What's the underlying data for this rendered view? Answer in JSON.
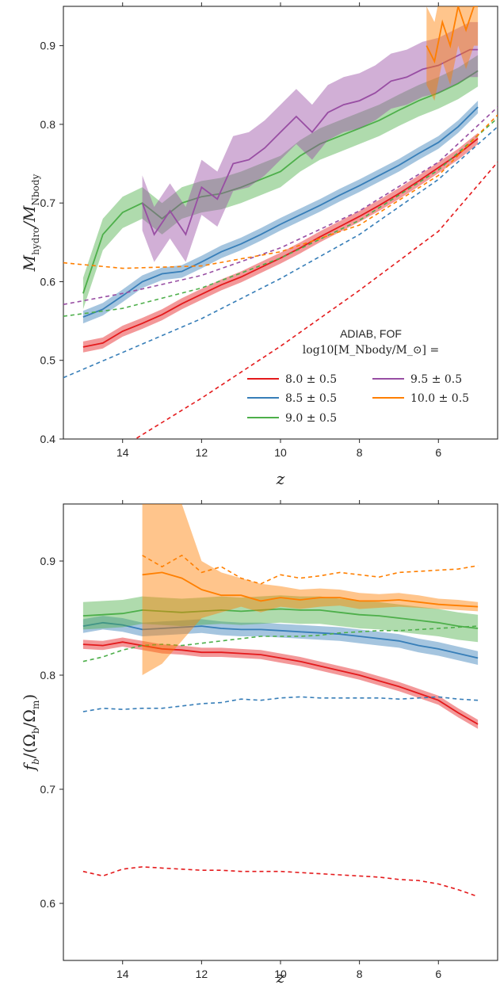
{
  "chart_data": [
    {
      "type": "line",
      "xlabel": "z",
      "ylabel": "M_hydro/M_Nbody",
      "xlim": [
        15.5,
        4.5
      ],
      "ylim": [
        0.4,
        0.95
      ],
      "xticks": [
        14,
        12,
        10,
        8,
        6
      ],
      "yticks": [
        0.4,
        0.5,
        0.6,
        0.7,
        0.8,
        0.9
      ],
      "xtick_labels": [
        "14",
        "12",
        "10",
        "8",
        "6"
      ],
      "ytick_labels": [
        "0.4",
        "0.5",
        "0.6",
        "0.7",
        "0.8",
        "0.9"
      ],
      "legend": {
        "title_line1": "ADIAB, FOF",
        "title_line2": "log10[M_Nbody/M_⊙] =",
        "placement": "lower-right",
        "entries": [
          "8.0 ± 0.5",
          "8.5 ± 0.5",
          "9.0 ± 0.5",
          "9.5 ± 0.5",
          "10.0 ± 0.5"
        ]
      },
      "series": [
        {
          "name": "8.0 ± 0.5",
          "color": "#e41a1c",
          "x": [
            15.0,
            14.5,
            14.0,
            13.5,
            13.0,
            12.5,
            12.0,
            11.5,
            11.0,
            10.5,
            10.0,
            9.5,
            9.0,
            8.5,
            8.0,
            7.5,
            7.0,
            6.5,
            6.0,
            5.5,
            5.0
          ],
          "y": [
            0.517,
            0.522,
            0.537,
            0.547,
            0.558,
            0.572,
            0.584,
            0.596,
            0.606,
            0.618,
            0.63,
            0.643,
            0.657,
            0.67,
            0.683,
            0.697,
            0.712,
            0.728,
            0.745,
            0.762,
            0.782
          ],
          "band": 0.007,
          "dashed_x": [
            15.5,
            14.0,
            12.0,
            10.0,
            8.0,
            6.0,
            4.5
          ],
          "dashed_y": [
            0.345,
            0.39,
            0.452,
            0.518,
            0.589,
            0.664,
            0.752
          ]
        },
        {
          "name": "8.5 ± 0.5",
          "color": "#377eb8",
          "x": [
            15.0,
            14.5,
            14.0,
            13.5,
            13.0,
            12.5,
            12.0,
            11.5,
            11.0,
            10.5,
            10.0,
            9.5,
            9.0,
            8.5,
            8.0,
            7.5,
            7.0,
            6.5,
            6.0,
            5.5,
            5.0
          ],
          "y": [
            0.555,
            0.565,
            0.582,
            0.6,
            0.61,
            0.613,
            0.625,
            0.638,
            0.648,
            0.66,
            0.673,
            0.685,
            0.697,
            0.71,
            0.722,
            0.735,
            0.748,
            0.763,
            0.777,
            0.797,
            0.822
          ],
          "band": 0.008,
          "dashed_x": [
            15.5,
            14.0,
            12.0,
            10.0,
            8.0,
            6.0,
            4.5
          ],
          "dashed_y": [
            0.478,
            0.51,
            0.553,
            0.604,
            0.66,
            0.73,
            0.797
          ]
        },
        {
          "name": "9.0 ± 0.5",
          "color": "#4daf4a",
          "x": [
            15.0,
            14.5,
            14.0,
            13.5,
            13.0,
            12.5,
            12.0,
            11.5,
            11.0,
            10.5,
            10.0,
            9.5,
            9.0,
            8.5,
            8.0,
            7.5,
            7.0,
            6.5,
            6.0,
            5.5,
            5.0
          ],
          "y": [
            0.585,
            0.66,
            0.688,
            0.7,
            0.68,
            0.7,
            0.708,
            0.712,
            0.72,
            0.73,
            0.74,
            0.76,
            0.775,
            0.785,
            0.795,
            0.805,
            0.818,
            0.83,
            0.84,
            0.852,
            0.868
          ],
          "band": 0.02,
          "dashed_x": [
            15.5,
            14.0,
            12.0,
            10.0,
            8.0,
            6.0,
            4.5
          ],
          "dashed_y": [
            0.556,
            0.566,
            0.592,
            0.63,
            0.678,
            0.742,
            0.808
          ]
        },
        {
          "name": "9.5 ± 0.5",
          "color": "#984ea3",
          "x": [
            13.5,
            13.2,
            12.8,
            12.4,
            12.0,
            11.6,
            11.2,
            10.8,
            10.4,
            10.0,
            9.6,
            9.2,
            8.8,
            8.4,
            8.0,
            7.6,
            7.2,
            6.8,
            6.4,
            6.0,
            5.6,
            5.2,
            5.0
          ],
          "y": [
            0.7,
            0.66,
            0.69,
            0.66,
            0.72,
            0.705,
            0.75,
            0.755,
            0.77,
            0.79,
            0.81,
            0.79,
            0.815,
            0.825,
            0.83,
            0.84,
            0.855,
            0.86,
            0.87,
            0.875,
            0.885,
            0.895,
            0.895
          ],
          "band": 0.035,
          "dashed_x": [
            15.5,
            14.0,
            12.0,
            10.0,
            8.0,
            6.0,
            4.5
          ],
          "dashed_y": [
            0.571,
            0.585,
            0.608,
            0.643,
            0.69,
            0.752,
            0.822
          ]
        },
        {
          "name": "10.0 ± 0.5",
          "color": "#ff7f00",
          "x": [
            6.3,
            6.1,
            5.9,
            5.7,
            5.5,
            5.3,
            5.1,
            5.0
          ],
          "y": [
            0.9,
            0.88,
            0.93,
            0.9,
            0.95,
            0.92,
            0.95,
            0.95
          ],
          "band": 0.05,
          "dashed_x": [
            15.5,
            14.0,
            12.0,
            10.0,
            8.0,
            6.0,
            4.5
          ],
          "dashed_y": [
            0.624,
            0.617,
            0.62,
            0.638,
            0.672,
            0.735,
            0.812
          ]
        }
      ]
    },
    {
      "type": "line",
      "xlabel": "z",
      "ylabel": "f_b/(Ω_b/Ω_m)",
      "xlim": [
        15.5,
        4.5
      ],
      "ylim": [
        0.55,
        0.95
      ],
      "xticks": [
        14,
        12,
        10,
        8,
        6
      ],
      "yticks": [
        0.6,
        0.7,
        0.8,
        0.9
      ],
      "xtick_labels": [
        "14",
        "12",
        "10",
        "8",
        "6"
      ],
      "ytick_labels": [
        "0.6",
        "0.7",
        "0.8",
        "0.9"
      ],
      "series": [
        {
          "name": "8.0 ± 0.5",
          "color": "#e41a1c",
          "x": [
            15.0,
            14.5,
            14.0,
            13.5,
            13.0,
            12.5,
            12.0,
            11.5,
            11.0,
            10.5,
            10.0,
            9.5,
            9.0,
            8.5,
            8.0,
            7.5,
            7.0,
            6.5,
            6.0,
            5.5,
            5.0
          ],
          "y": [
            0.827,
            0.826,
            0.829,
            0.826,
            0.823,
            0.822,
            0.82,
            0.82,
            0.819,
            0.818,
            0.815,
            0.812,
            0.808,
            0.804,
            0.8,
            0.795,
            0.79,
            0.784,
            0.778,
            0.767,
            0.757
          ],
          "band": 0.004,
          "dashed_x": [
            15.0,
            14.5,
            14.0,
            13.5,
            13.0,
            12.5,
            12.0,
            11.5,
            11.0,
            10.5,
            10.0,
            9.5,
            9.0,
            8.5,
            8.0,
            7.5,
            7.0,
            6.5,
            6.0,
            5.5,
            5.0
          ],
          "dashed_y": [
            0.628,
            0.624,
            0.63,
            0.632,
            0.631,
            0.63,
            0.629,
            0.629,
            0.628,
            0.628,
            0.628,
            0.627,
            0.626,
            0.625,
            0.624,
            0.623,
            0.621,
            0.62,
            0.617,
            0.612,
            0.606
          ]
        },
        {
          "name": "8.5 ± 0.5",
          "color": "#377eb8",
          "x": [
            15.0,
            14.5,
            14.0,
            13.5,
            13.0,
            12.5,
            12.0,
            11.5,
            11.0,
            10.5,
            10.0,
            9.5,
            9.0,
            8.5,
            8.0,
            7.5,
            7.0,
            6.5,
            6.0,
            5.5,
            5.0
          ],
          "y": [
            0.843,
            0.846,
            0.844,
            0.84,
            0.841,
            0.842,
            0.843,
            0.841,
            0.84,
            0.84,
            0.839,
            0.838,
            0.837,
            0.836,
            0.834,
            0.832,
            0.83,
            0.826,
            0.823,
            0.819,
            0.815
          ],
          "band": 0.006,
          "dashed_x": [
            15.0,
            14.5,
            14.0,
            13.5,
            13.0,
            12.5,
            12.0,
            11.5,
            11.0,
            10.5,
            10.0,
            9.5,
            9.0,
            8.5,
            8.0,
            7.5,
            7.0,
            6.5,
            6.0,
            5.5,
            5.0
          ],
          "dashed_y": [
            0.768,
            0.771,
            0.77,
            0.771,
            0.771,
            0.773,
            0.775,
            0.776,
            0.779,
            0.778,
            0.78,
            0.781,
            0.78,
            0.78,
            0.78,
            0.78,
            0.779,
            0.78,
            0.781,
            0.779,
            0.778
          ]
        },
        {
          "name": "9.0 ± 0.5",
          "color": "#4daf4a",
          "x": [
            15.0,
            14.5,
            14.0,
            13.5,
            13.0,
            12.5,
            12.0,
            11.5,
            11.0,
            10.5,
            10.0,
            9.5,
            9.0,
            8.5,
            8.0,
            7.5,
            7.0,
            6.5,
            6.0,
            5.5,
            5.0
          ],
          "y": [
            0.852,
            0.853,
            0.854,
            0.857,
            0.856,
            0.855,
            0.856,
            0.857,
            0.856,
            0.857,
            0.858,
            0.857,
            0.857,
            0.855,
            0.853,
            0.852,
            0.85,
            0.848,
            0.846,
            0.843,
            0.841
          ],
          "band": 0.012,
          "dashed_x": [
            15.0,
            14.5,
            14.0,
            13.5,
            13.0,
            12.5,
            12.0,
            11.5,
            11.0,
            10.5,
            10.0,
            9.5,
            9.0,
            8.5,
            8.0,
            7.5,
            7.0,
            6.5,
            6.0,
            5.5,
            5.0
          ],
          "dashed_y": [
            0.812,
            0.816,
            0.822,
            0.826,
            0.827,
            0.826,
            0.828,
            0.83,
            0.832,
            0.834,
            0.834,
            0.834,
            0.835,
            0.837,
            0.838,
            0.839,
            0.839,
            0.84,
            0.841,
            0.842,
            0.843
          ]
        },
        {
          "name": "10.0 ± 0.5",
          "color": "#ff7f00",
          "x": [
            13.5,
            13.0,
            12.5,
            12.0,
            11.5,
            11.0,
            10.5,
            10.0,
            9.5,
            9.0,
            8.5,
            8.0,
            7.5,
            7.0,
            6.5,
            6.0,
            5.5,
            5.0
          ],
          "y": [
            0.888,
            0.89,
            0.885,
            0.875,
            0.87,
            0.87,
            0.865,
            0.868,
            0.866,
            0.868,
            0.868,
            0.865,
            0.865,
            0.866,
            0.864,
            0.862,
            0.861,
            0.86
          ],
          "band_lo": [
            0.8,
            0.81,
            0.83,
            0.85,
            0.855,
            0.86,
            0.855,
            0.86,
            0.858,
            0.86,
            0.861,
            0.858,
            0.859,
            0.86,
            0.859,
            0.858,
            0.857,
            0.856
          ],
          "band_hi": [
            0.95,
            0.95,
            0.95,
            0.9,
            0.89,
            0.885,
            0.88,
            0.878,
            0.875,
            0.876,
            0.875,
            0.872,
            0.871,
            0.872,
            0.87,
            0.867,
            0.866,
            0.864
          ],
          "dashed_x": [
            13.5,
            13.0,
            12.5,
            12.0,
            11.5,
            11.0,
            10.5,
            10.0,
            9.5,
            9.0,
            8.5,
            8.0,
            7.5,
            7.0,
            6.5,
            6.0,
            5.5,
            5.0
          ],
          "dashed_y": [
            0.905,
            0.895,
            0.905,
            0.89,
            0.895,
            0.885,
            0.88,
            0.888,
            0.885,
            0.887,
            0.89,
            0.888,
            0.886,
            0.89,
            0.891,
            0.892,
            0.893,
            0.896
          ]
        }
      ]
    }
  ]
}
